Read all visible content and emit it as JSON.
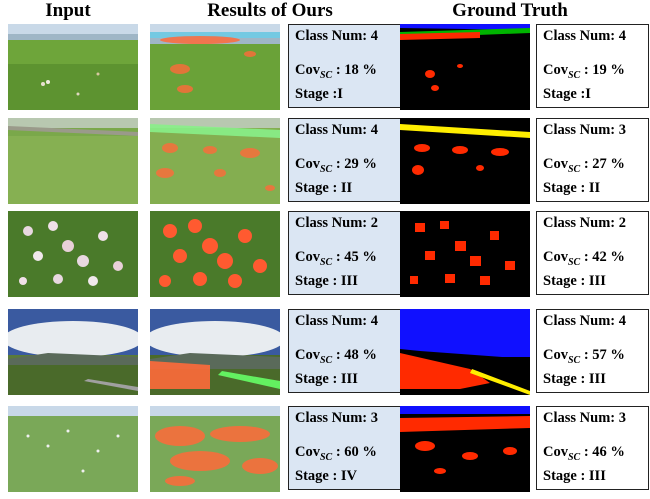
{
  "headers": {
    "input": "Input",
    "ours": "Results of Ours",
    "gt": "Ground Truth"
  },
  "colors": {
    "flower": "#ff2a00",
    "road": "#ffee00",
    "sky": "#1010ff",
    "water": "#00b400",
    "background": "#000000",
    "ours_box": "#dbe6f3"
  },
  "rows": [
    {
      "ours": {
        "class_num": "Class Num: 4",
        "cov_value": ": 18 %",
        "stage": "Stage :I"
      },
      "gt": {
        "class_num": "Class Num: 4",
        "cov_value": ": 19 %",
        "stage": "Stage :I"
      }
    },
    {
      "ours": {
        "class_num": "Class Num: 4",
        "cov_value": ": 29 %",
        "stage": "Stage : II"
      },
      "gt": {
        "class_num": "Class Num: 3",
        "cov_value": ": 27 %",
        "stage": "Stage : II"
      }
    },
    {
      "ours": {
        "class_num": "Class Num: 2",
        "cov_value": ": 45 %",
        "stage": "Stage : III"
      },
      "gt": {
        "class_num": "Class Num: 2",
        "cov_value": ": 42 %",
        "stage": "Stage : III"
      }
    },
    {
      "ours": {
        "class_num": "Class Num: 4",
        "cov_value": ": 48 %",
        "stage": "Stage : III"
      },
      "gt": {
        "class_num": "Class Num: 4",
        "cov_value": ": 57 %",
        "stage": "Stage : III"
      }
    },
    {
      "ours": {
        "class_num": "Class Num: 3",
        "cov_value": ": 60 %",
        "stage": "Stage : IV"
      },
      "gt": {
        "class_num": "Class Num: 3",
        "cov_value": ": 46 %",
        "stage": "Stage : III"
      }
    }
  ],
  "cov_label": {
    "main": "Cov",
    "sub": "SC"
  }
}
